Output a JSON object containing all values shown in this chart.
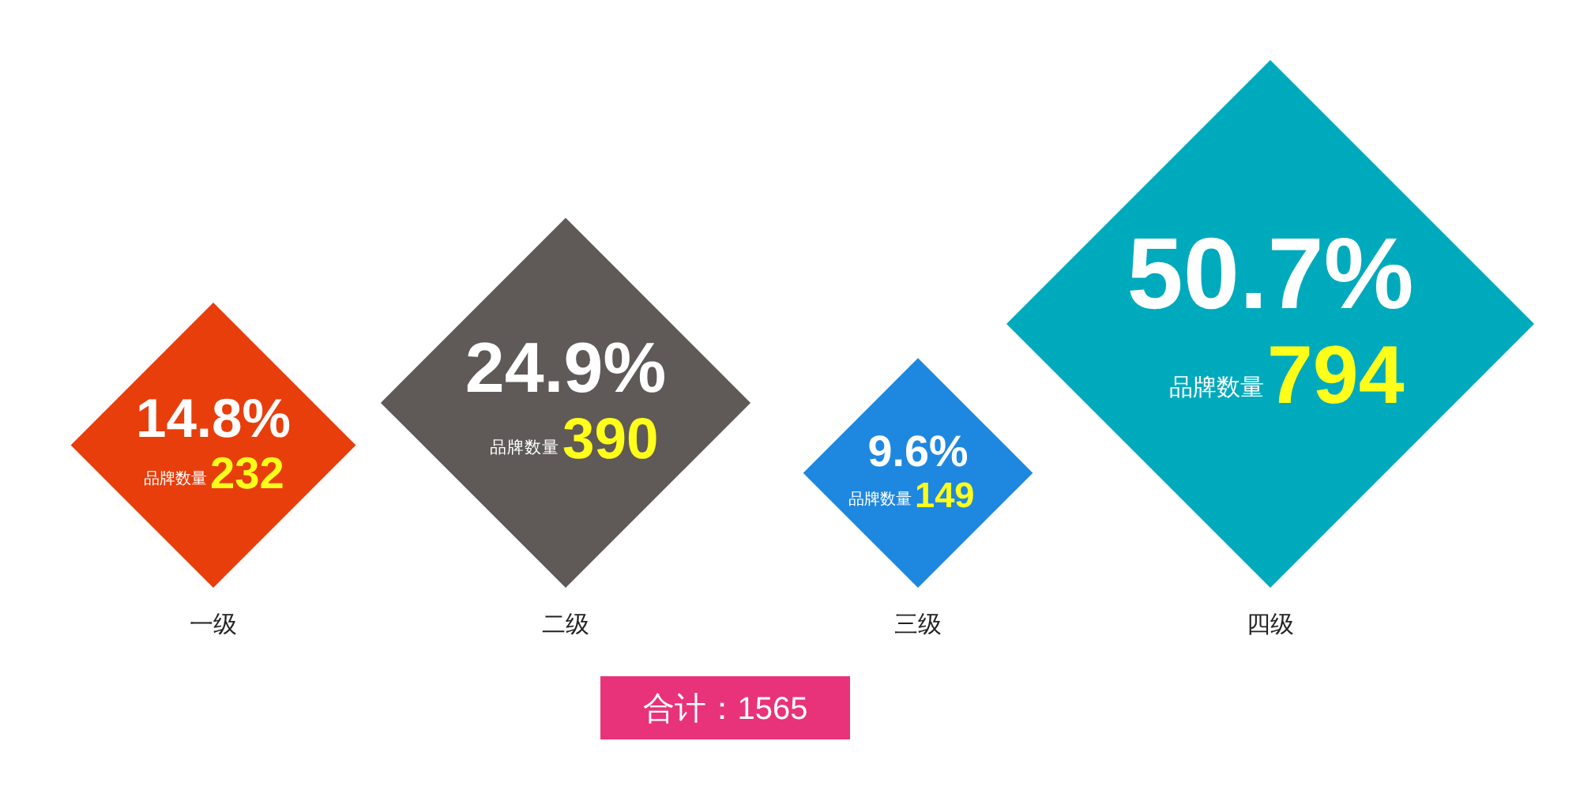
{
  "chart_data": {
    "type": "other",
    "categories": [
      "一级",
      "二级",
      "三级",
      "四级"
    ],
    "series": [
      {
        "name": "品牌数量",
        "values": [
          232,
          390,
          149,
          794
        ],
        "colors": [
          "#e83e0c",
          "#5f5957",
          "#1e88e0",
          "#00aabd"
        ]
      },
      {
        "values": [
          14.8,
          24.9,
          9.6,
          50.7
        ],
        "value_labels": [
          "14.8%",
          "24.9%",
          "9.6%",
          "50.7%"
        ]
      }
    ],
    "data_labels": true,
    "annotations": [
      "合计：1565"
    ]
  }
}
